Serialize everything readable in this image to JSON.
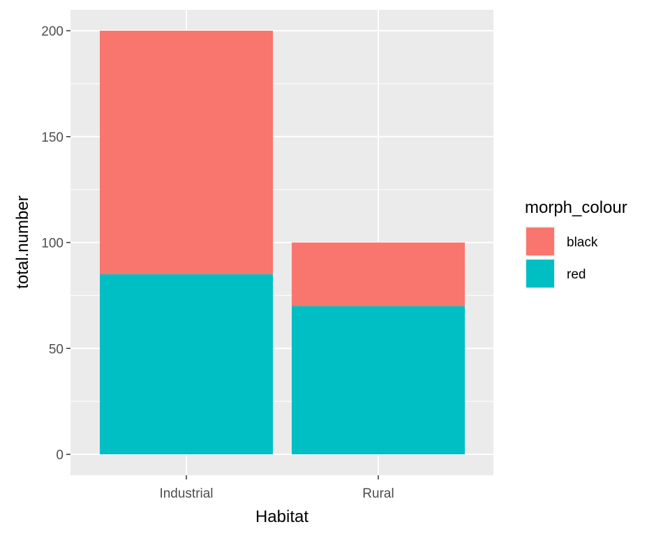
{
  "chart_data": {
    "type": "bar",
    "stacked": true,
    "categories": [
      "Industrial",
      "Rural"
    ],
    "series": [
      {
        "name": "black",
        "values": [
          115,
          30
        ],
        "color": "#F8766D"
      },
      {
        "name": "red",
        "values": [
          85,
          70
        ],
        "color": "#00BFC4"
      }
    ],
    "xlabel": "Habitat",
    "ylabel": "total.number",
    "ylim": [
      -10,
      210
    ],
    "yticks": [
      0,
      50,
      100,
      150,
      200
    ],
    "ytick_labels": [
      "0",
      "50",
      "100",
      "150",
      "200"
    ],
    "grid": true,
    "panel_background": "#EBEBEB",
    "legend": {
      "title": "morph_colour",
      "placement": "right",
      "entries": [
        "black",
        "red"
      ]
    }
  }
}
